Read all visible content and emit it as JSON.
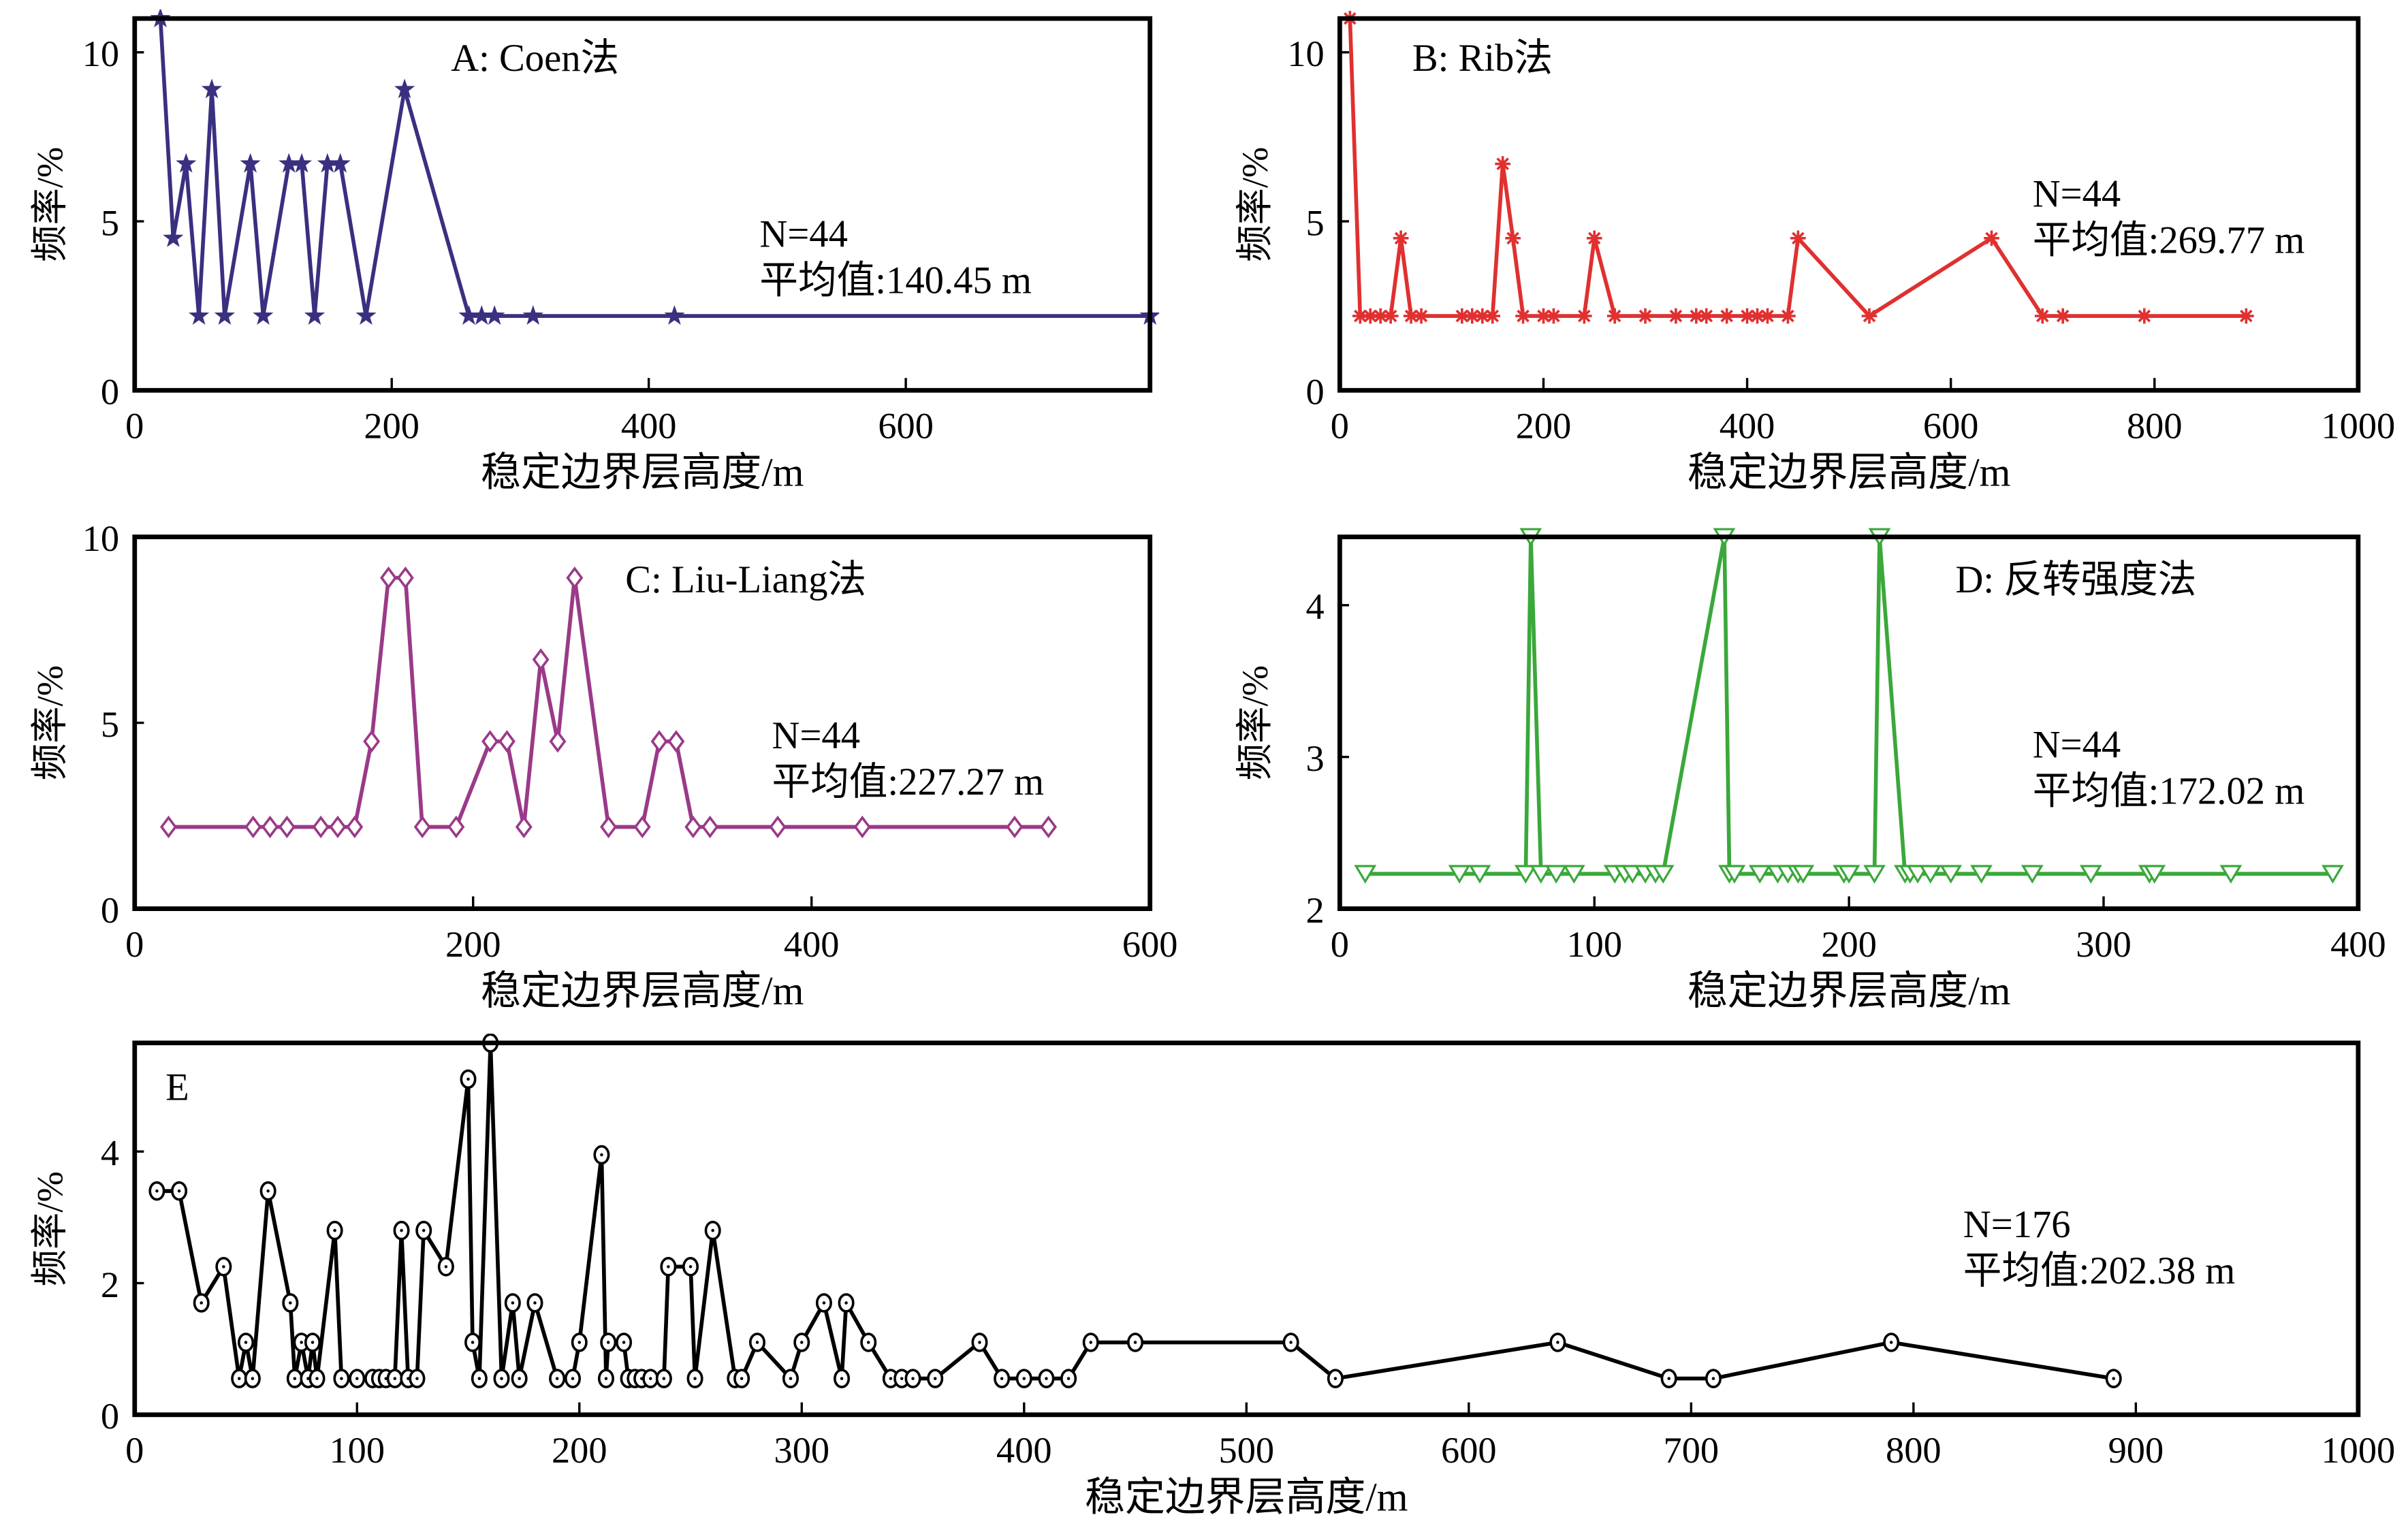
{
  "chart_data": [
    {
      "id": "A",
      "type": "line",
      "title": "A: Coen法",
      "xlabel": "稳定边界层高度/m",
      "ylabel": "频率/%",
      "xlim": [
        0,
        790
      ],
      "ylim": [
        0,
        11
      ],
      "xticks": [
        0,
        200,
        400,
        600
      ],
      "yticks": [
        0,
        5,
        10
      ],
      "color": "#3a3080",
      "marker": "star",
      "annotation": {
        "n": "N=44",
        "mean": "平均值:140.45 m"
      },
      "x": [
        20,
        30,
        40,
        50,
        60,
        70,
        90,
        100,
        120,
        130,
        140,
        150,
        160,
        180,
        210,
        260,
        270,
        280,
        310,
        420,
        790
      ],
      "y": [
        11,
        4.5,
        6.7,
        2.2,
        8.9,
        2.2,
        6.7,
        2.2,
        6.7,
        6.7,
        2.2,
        6.7,
        6.7,
        2.2,
        8.9,
        2.2,
        2.2,
        2.2,
        2.2,
        2.2,
        2.2
      ]
    },
    {
      "id": "B",
      "type": "line",
      "title": "B: Rib法",
      "xlabel": "稳定边界层高度/m",
      "ylabel": "频率/%",
      "xlim": [
        0,
        1000
      ],
      "ylim": [
        0,
        11
      ],
      "xticks": [
        0,
        200,
        400,
        600,
        800,
        1000
      ],
      "yticks": [
        0,
        5,
        10
      ],
      "color": "#e03030",
      "marker": "asterisk",
      "annotation": {
        "n": "N=44",
        "mean": "平均值:269.77 m"
      },
      "x": [
        10,
        20,
        30,
        40,
        50,
        60,
        70,
        80,
        120,
        130,
        140,
        150,
        160,
        170,
        180,
        200,
        210,
        240,
        250,
        270,
        300,
        330,
        350,
        360,
        380,
        400,
        410,
        420,
        440,
        450,
        520,
        640,
        690,
        710,
        790,
        890
      ],
      "y": [
        11,
        2.2,
        2.2,
        2.2,
        2.2,
        4.5,
        2.2,
        2.2,
        2.2,
        2.2,
        2.2,
        2.2,
        6.7,
        4.5,
        2.2,
        2.2,
        2.2,
        2.2,
        4.5,
        2.2,
        2.2,
        2.2,
        2.2,
        2.2,
        2.2,
        2.2,
        2.2,
        2.2,
        2.2,
        4.5,
        2.2,
        4.5,
        2.2,
        2.2,
        2.2,
        2.2
      ]
    },
    {
      "id": "C",
      "type": "line",
      "title": "C: Liu-Liang法",
      "xlabel": "稳定边界层高度/m",
      "ylabel": "频率/%",
      "xlim": [
        0,
        600
      ],
      "ylim": [
        0,
        10
      ],
      "xticks": [
        0,
        200,
        400,
        600
      ],
      "yticks": [
        0,
        5,
        10
      ],
      "color": "#9a3a88",
      "marker": "diamond",
      "annotation": {
        "n": "N=44",
        "mean": "平均值:227.27 m"
      },
      "x": [
        20,
        70,
        80,
        90,
        110,
        120,
        130,
        140,
        150,
        160,
        170,
        190,
        210,
        220,
        230,
        240,
        250,
        260,
        280,
        300,
        310,
        320,
        330,
        340,
        380,
        430,
        520,
        540
      ],
      "y": [
        2.2,
        2.2,
        2.2,
        2.2,
        2.2,
        2.2,
        2.2,
        4.5,
        8.9,
        8.9,
        2.2,
        2.2,
        4.5,
        4.5,
        2.2,
        6.7,
        4.5,
        8.9,
        2.2,
        2.2,
        4.5,
        4.5,
        2.2,
        2.2,
        2.2,
        2.2,
        2.2,
        2.2
      ]
    },
    {
      "id": "D",
      "type": "line",
      "title": "D: 反转强度法",
      "xlabel": "稳定边界层高度/m",
      "ylabel": "频率/%",
      "xlim": [
        0,
        400
      ],
      "ylim": [
        2,
        4.45
      ],
      "xticks": [
        0,
        100,
        200,
        300,
        400
      ],
      "yticks": [
        2,
        3,
        4
      ],
      "color": "#3aa83a",
      "marker": "triangle-down",
      "annotation": {
        "n": "N=44",
        "mean": "平均值:172.02 m"
      },
      "x": [
        10,
        47,
        55,
        73,
        75,
        79,
        85,
        92,
        108,
        112,
        115,
        120,
        124,
        127,
        151,
        153,
        155,
        165,
        172,
        176,
        180,
        182,
        198,
        200,
        210,
        212,
        222,
        224,
        227,
        232,
        240,
        252,
        272,
        295,
        318,
        320,
        350,
        390
      ],
      "y": [
        2.23,
        2.23,
        2.23,
        2.23,
        4.45,
        2.23,
        2.23,
        2.23,
        2.23,
        2.23,
        2.23,
        2.23,
        2.23,
        2.23,
        4.45,
        2.23,
        2.23,
        2.23,
        2.23,
        2.23,
        2.23,
        2.23,
        2.23,
        2.23,
        2.23,
        4.45,
        2.23,
        2.23,
        2.23,
        2.23,
        2.23,
        2.23,
        2.23,
        2.23,
        2.23,
        2.23,
        2.23,
        2.23
      ]
    },
    {
      "id": "E",
      "type": "line",
      "title": "E",
      "xlabel": "稳定边界层高度/m",
      "ylabel": "频率/%",
      "xlim": [
        0,
        1000
      ],
      "ylim": [
        0,
        5.65
      ],
      "xticks": [
        0,
        100,
        200,
        300,
        400,
        500,
        600,
        700,
        800,
        900,
        1000
      ],
      "yticks": [
        0,
        2,
        4
      ],
      "color": "#000000",
      "marker": "circle",
      "annotation": {
        "n": "N=176",
        "mean": "平均值:202.38 m"
      },
      "x": [
        10,
        20,
        30,
        40,
        47,
        50,
        53,
        60,
        70,
        72,
        75,
        78,
        80,
        82,
        90,
        93,
        100,
        107,
        110,
        113,
        117,
        120,
        123,
        127,
        130,
        140,
        150,
        152,
        155,
        160,
        165,
        170,
        173,
        180,
        190,
        197,
        200,
        210,
        212,
        213,
        220,
        222,
        225,
        228,
        232,
        238,
        240,
        250,
        252,
        260,
        270,
        273,
        280,
        295,
        300,
        310,
        318,
        320,
        330,
        340,
        345,
        350,
        360,
        380,
        390,
        400,
        410,
        420,
        430,
        450,
        520,
        540,
        640,
        690,
        710,
        790,
        890
      ],
      "y": [
        3.4,
        3.4,
        1.7,
        2.25,
        0.55,
        1.1,
        0.55,
        3.4,
        1.7,
        0.55,
        1.1,
        0.55,
        1.1,
        0.55,
        2.8,
        0.55,
        0.55,
        0.55,
        0.55,
        0.55,
        0.55,
        2.8,
        0.55,
        0.55,
        2.8,
        2.25,
        5.1,
        1.1,
        0.55,
        5.65,
        0.55,
        1.7,
        0.55,
        1.7,
        0.55,
        0.55,
        1.1,
        3.95,
        0.55,
        1.1,
        1.1,
        0.55,
        0.55,
        0.55,
        0.55,
        0.55,
        2.25,
        2.25,
        0.55,
        2.8,
        0.55,
        0.55,
        1.1,
        0.55,
        1.1,
        1.7,
        0.55,
        1.7,
        1.1,
        0.55,
        0.55,
        0.55,
        0.55,
        1.1,
        0.55,
        0.55,
        0.55,
        0.55,
        1.1,
        1.1,
        1.1,
        0.55,
        1.1,
        0.55,
        0.55,
        1.1,
        0.55
      ]
    }
  ]
}
